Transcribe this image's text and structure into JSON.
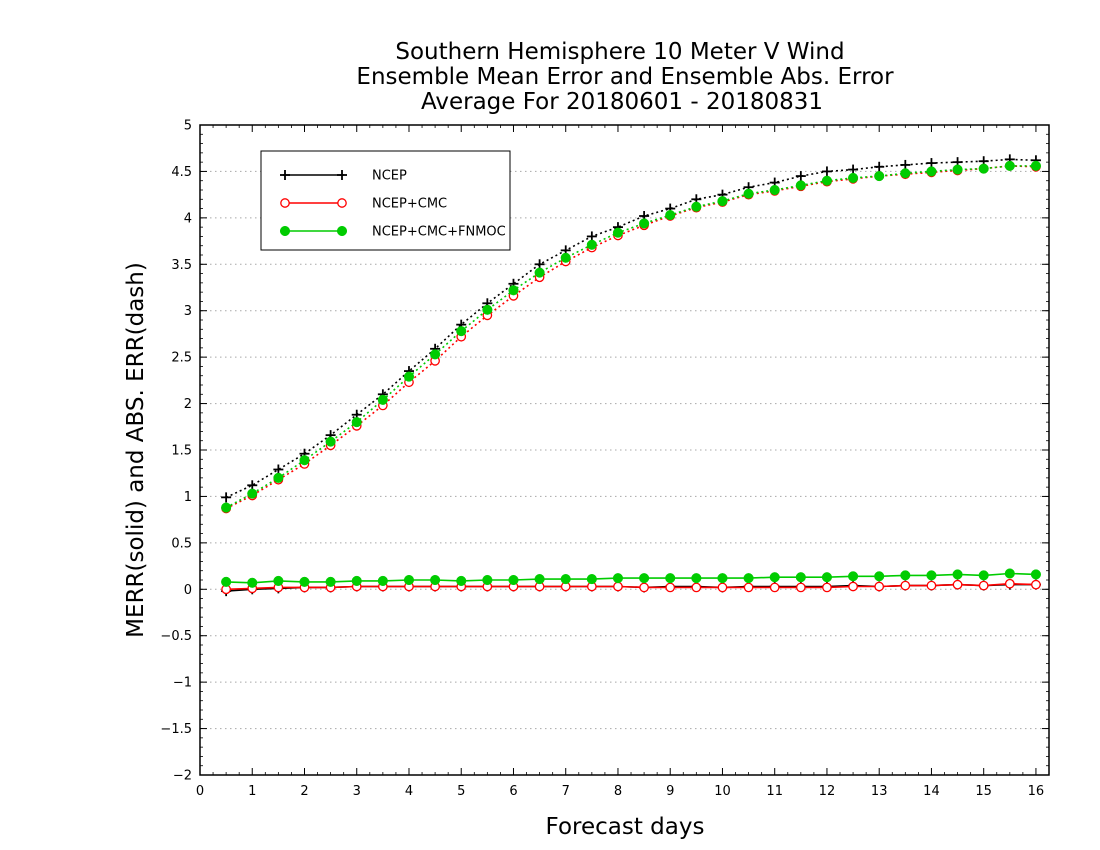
{
  "chart_data": {
    "type": "line",
    "title": [
      "Southern Hemisphere 10 Meter V Wind",
      "Ensemble Mean Error and Ensemble Abs. Error",
      "Average For 20180601 - 20180831"
    ],
    "xlabel": "Forecast days",
    "ylabel": "MERR(solid) and ABS. ERR(dash)",
    "xlim": [
      0,
      16.25
    ],
    "ylim": [
      -2,
      5
    ],
    "xticks": [
      0,
      1,
      2,
      3,
      4,
      5,
      6,
      7,
      8,
      9,
      10,
      11,
      12,
      13,
      14,
      15,
      16
    ],
    "yticks": [
      -2,
      -1.5,
      -1,
      -0.5,
      0,
      0.5,
      1,
      1.5,
      2,
      2.5,
      3,
      3.5,
      4,
      4.5,
      5
    ],
    "ytick_labels": [
      "−2",
      "−1.5",
      "−1",
      "−0.5",
      "0",
      "0.5",
      "1",
      "1.5",
      "2",
      "2.5",
      "3",
      "3.5",
      "4",
      "4.5",
      "5"
    ],
    "grid": "horizontal-dotted",
    "legend_position": "top-left",
    "x": [
      0.5,
      1,
      1.5,
      2,
      2.5,
      3,
      3.5,
      4,
      4.5,
      5,
      5.5,
      6,
      6.5,
      7,
      7.5,
      8,
      8.5,
      9,
      9.5,
      10,
      10.5,
      11,
      11.5,
      12,
      12.5,
      13,
      13.5,
      14,
      14.5,
      15,
      15.5,
      16
    ],
    "series": [
      {
        "name": "NCEP",
        "color": "#000000",
        "marker": "plus",
        "abs_err": [
          0.99,
          1.12,
          1.29,
          1.46,
          1.66,
          1.88,
          2.1,
          2.35,
          2.59,
          2.85,
          3.08,
          3.29,
          3.5,
          3.65,
          3.8,
          3.9,
          4.02,
          4.1,
          4.2,
          4.25,
          4.33,
          4.38,
          4.45,
          4.5,
          4.52,
          4.55,
          4.57,
          4.59,
          4.6,
          4.61,
          4.63,
          4.62
        ],
        "mean_err": [
          -0.02,
          0.0,
          0.01,
          0.02,
          0.02,
          0.03,
          0.03,
          0.03,
          0.03,
          0.03,
          0.03,
          0.03,
          0.03,
          0.03,
          0.03,
          0.03,
          0.02,
          0.03,
          0.03,
          0.02,
          0.03,
          0.03,
          0.03,
          0.03,
          0.04,
          0.03,
          0.04,
          0.04,
          0.05,
          0.04,
          0.05,
          0.05
        ]
      },
      {
        "name": "NCEP+CMC",
        "color": "#ff0000",
        "marker": "open-circle",
        "abs_err": [
          0.87,
          1.01,
          1.18,
          1.35,
          1.55,
          1.76,
          1.98,
          2.23,
          2.46,
          2.72,
          2.95,
          3.16,
          3.36,
          3.53,
          3.68,
          3.81,
          3.92,
          4.02,
          4.11,
          4.17,
          4.25,
          4.29,
          4.34,
          4.39,
          4.42,
          4.45,
          4.47,
          4.49,
          4.51,
          4.53,
          4.56,
          4.55
        ],
        "mean_err": [
          0.0,
          0.01,
          0.02,
          0.02,
          0.02,
          0.03,
          0.03,
          0.03,
          0.03,
          0.03,
          0.03,
          0.03,
          0.03,
          0.03,
          0.03,
          0.03,
          0.02,
          0.02,
          0.02,
          0.02,
          0.02,
          0.02,
          0.02,
          0.02,
          0.03,
          0.03,
          0.04,
          0.04,
          0.05,
          0.04,
          0.06,
          0.05
        ]
      },
      {
        "name": "NCEP+CMC+FNMOC",
        "color": "#00cc00",
        "marker": "filled-circle",
        "abs_err": [
          0.88,
          1.03,
          1.2,
          1.39,
          1.59,
          1.8,
          2.04,
          2.29,
          2.53,
          2.78,
          3.01,
          3.22,
          3.41,
          3.57,
          3.71,
          3.84,
          3.94,
          4.03,
          4.12,
          4.18,
          4.26,
          4.3,
          4.35,
          4.4,
          4.43,
          4.45,
          4.48,
          4.5,
          4.52,
          4.53,
          4.56,
          4.56
        ],
        "mean_err": [
          0.08,
          0.07,
          0.09,
          0.08,
          0.08,
          0.09,
          0.09,
          0.1,
          0.1,
          0.09,
          0.1,
          0.1,
          0.11,
          0.11,
          0.11,
          0.12,
          0.12,
          0.12,
          0.12,
          0.12,
          0.12,
          0.13,
          0.13,
          0.13,
          0.14,
          0.14,
          0.15,
          0.15,
          0.16,
          0.15,
          0.17,
          0.16
        ]
      }
    ]
  }
}
